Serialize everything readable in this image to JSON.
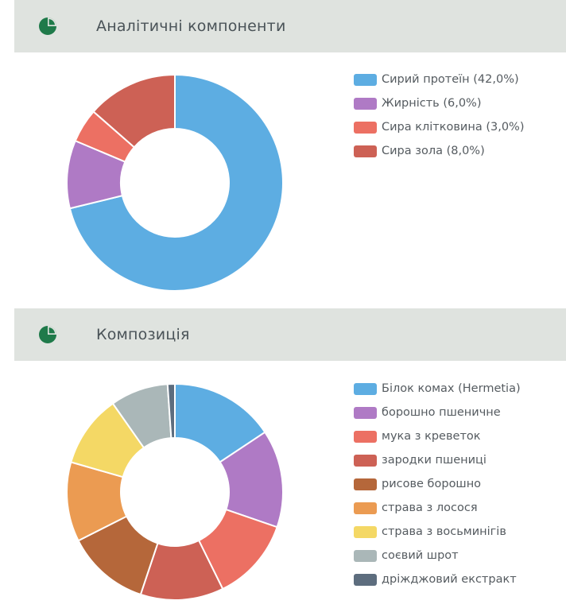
{
  "sections": [
    {
      "title": "Аналітичні компоненти",
      "icon": "pie-chart-icon"
    },
    {
      "title": "Композиція",
      "icon": "pie-chart-icon"
    }
  ],
  "icon_color": "#1f7a4a",
  "chart_data": [
    {
      "type": "pie",
      "subtype": "donut",
      "title": "Аналітичні компоненти",
      "categories": [
        "Сирий протеїн",
        "Жирність",
        "Сира клітковина",
        "Сира зола"
      ],
      "values": [
        42.0,
        6.0,
        3.0,
        8.0
      ],
      "legend_labels": [
        "Сирий протеїн (42,0%)",
        "Жирність (6,0%)",
        "Сира клітковина (3,0%)",
        "Сира зола (8,0%)"
      ],
      "colors": [
        "#5dade2",
        "#af7ac5",
        "#ec7063",
        "#cd6155"
      ],
      "legend": "right"
    },
    {
      "type": "pie",
      "subtype": "donut",
      "title": "Композиція",
      "categories": [
        "Білок комах (Hermetia)",
        "борошно пшеничне",
        "мука з креветок",
        "зародки пшениці",
        "рисове борошно",
        "страва з лосося",
        "страва з восьминігів",
        "соєвий шрот",
        "дріжджовий екстракт"
      ],
      "values": [
        14.5,
        13.5,
        11.5,
        11.5,
        11.5,
        11,
        10,
        8,
        1
      ],
      "legend_labels": [
        "Білок комах (Hermetia)",
        "борошно пшеничне",
        "мука з креветок",
        "зародки пшениці",
        "рисове борошно",
        "страва з лосося",
        "страва з восьминігів",
        "соєвий шрот",
        "дріжджовий екстракт"
      ],
      "colors": [
        "#5dade2",
        "#af7ac5",
        "#ec7063",
        "#cd6155",
        "#b5673a",
        "#eb9b52",
        "#f4d865",
        "#aab7b8",
        "#5d6d7e"
      ],
      "legend": "right"
    }
  ]
}
